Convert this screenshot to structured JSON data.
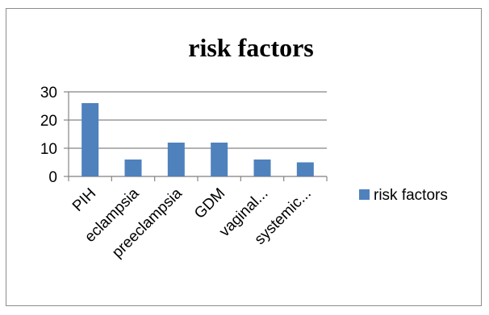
{
  "chart_data": {
    "type": "bar",
    "title": "risk factors",
    "categories": [
      "PIH",
      "eclampsia",
      "preeclampsia",
      "GDM",
      "vaginal...",
      "systemic..."
    ],
    "series": [
      {
        "name": "risk factors",
        "values": [
          26,
          6,
          12,
          12,
          6,
          5
        ],
        "color": "#4f81bd"
      }
    ],
    "ylim": [
      0,
      30
    ],
    "yticks": [
      0,
      10,
      20,
      30
    ],
    "xlabel": "",
    "ylabel": "",
    "grid": true,
    "legend": "right"
  }
}
